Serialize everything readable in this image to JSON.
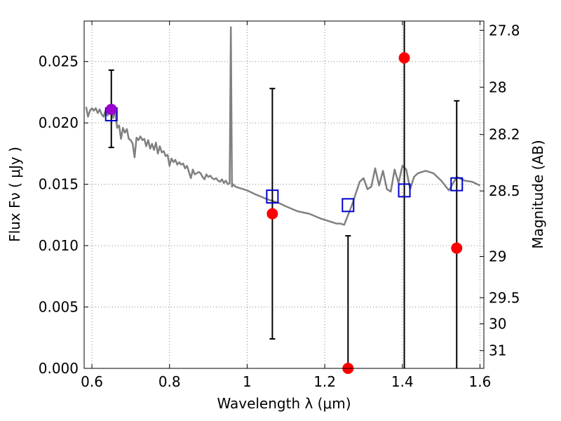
{
  "chart_data": {
    "type": "scatter",
    "xlabel": "Wavelength  λ (μm)",
    "ylabel": "Flux  Fν  ( μJy )",
    "ylabel_right": "Magnitude (AB)",
    "xlim": [
      0.58,
      1.61
    ],
    "ylim": [
      0.0,
      0.0283
    ],
    "grid": true,
    "x_ticks": [
      0.6,
      0.8,
      1.0,
      1.2,
      1.4,
      1.6
    ],
    "x_tick_labels": [
      "0.6",
      "0.8",
      "1",
      "1.2",
      "1.4",
      "1.6"
    ],
    "y_ticks": [
      0.0,
      0.005,
      0.01,
      0.015,
      0.02,
      0.025
    ],
    "y_tick_labels": [
      "0.000",
      "0.005",
      "0.010",
      "0.015",
      "0.020",
      "0.025"
    ],
    "right_ticks": [
      {
        "mag": 27.8,
        "label": "27.8"
      },
      {
        "mag": 28.0,
        "label": "28"
      },
      {
        "mag": 28.2,
        "label": "28.2"
      },
      {
        "mag": 28.5,
        "label": "28.5"
      },
      {
        "mag": 29.0,
        "label": "29"
      },
      {
        "mag": 29.5,
        "label": "29.5"
      },
      {
        "mag": 30.0,
        "label": "30"
      },
      {
        "mag": 31.0,
        "label": "31"
      }
    ],
    "colors": {
      "model": "#808080",
      "observed": "#ff0000",
      "model_band": "#0000cc",
      "overlap": "#9900cc",
      "errorbar": "#000000",
      "grid": "#888888"
    },
    "series": [
      {
        "kind": "line",
        "x": [
          0.585,
          0.59,
          0.595,
          0.6,
          0.605,
          0.61,
          0.615,
          0.62,
          0.625,
          0.63,
          0.635,
          0.64,
          0.645,
          0.65,
          0.655,
          0.66,
          0.665,
          0.67,
          0.675,
          0.68,
          0.685,
          0.69,
          0.695,
          0.7,
          0.705,
          0.71,
          0.715,
          0.72,
          0.725,
          0.73,
          0.735,
          0.74,
          0.745,
          0.75,
          0.755,
          0.76,
          0.765,
          0.77,
          0.775,
          0.78,
          0.785,
          0.79,
          0.795,
          0.8,
          0.805,
          0.81,
          0.815,
          0.82,
          0.825,
          0.83,
          0.835,
          0.84,
          0.845,
          0.85,
          0.855,
          0.86,
          0.865,
          0.87,
          0.875,
          0.88,
          0.885,
          0.89,
          0.895,
          0.9,
          0.905,
          0.91,
          0.915,
          0.92,
          0.925,
          0.93,
          0.935,
          0.94,
          0.945,
          0.95,
          0.955,
          0.958,
          0.961,
          0.964,
          0.97,
          0.98,
          0.99,
          1.0,
          1.02,
          1.05,
          1.08,
          1.1,
          1.13,
          1.16,
          1.19,
          1.21,
          1.23,
          1.24,
          1.25,
          1.27,
          1.29,
          1.3,
          1.31,
          1.32,
          1.33,
          1.34,
          1.35,
          1.36,
          1.37,
          1.38,
          1.39,
          1.4,
          1.41,
          1.42,
          1.43,
          1.44,
          1.46,
          1.48,
          1.5,
          1.52,
          1.54,
          1.56,
          1.58,
          1.6
        ],
        "y": [
          0.0213,
          0.0205,
          0.021,
          0.0212,
          0.021,
          0.0212,
          0.0208,
          0.0211,
          0.0207,
          0.0205,
          0.021,
          0.0206,
          0.0209,
          0.0211,
          0.0204,
          0.021,
          0.0196,
          0.0198,
          0.0187,
          0.0196,
          0.0192,
          0.0195,
          0.0187,
          0.0186,
          0.0183,
          0.0172,
          0.0188,
          0.0186,
          0.0189,
          0.0186,
          0.0187,
          0.0181,
          0.0186,
          0.0179,
          0.0183,
          0.0178,
          0.0184,
          0.0175,
          0.0181,
          0.0176,
          0.0177,
          0.0173,
          0.0174,
          0.0165,
          0.0171,
          0.0168,
          0.017,
          0.0166,
          0.0168,
          0.0166,
          0.0167,
          0.0163,
          0.0165,
          0.016,
          0.0155,
          0.0162,
          0.0158,
          0.0159,
          0.016,
          0.0159,
          0.0156,
          0.0154,
          0.0158,
          0.0156,
          0.0157,
          0.0155,
          0.0154,
          0.0155,
          0.0153,
          0.0152,
          0.0154,
          0.0151,
          0.0153,
          0.015,
          0.0151,
          0.0278,
          0.0148,
          0.015,
          0.0148,
          0.0147,
          0.0146,
          0.0145,
          0.0142,
          0.0138,
          0.0135,
          0.0132,
          0.0128,
          0.0126,
          0.0122,
          0.012,
          0.0118,
          0.0118,
          0.0117,
          0.0133,
          0.0152,
          0.0155,
          0.0146,
          0.0148,
          0.0163,
          0.0149,
          0.0161,
          0.0146,
          0.0144,
          0.0162,
          0.0151,
          0.0165,
          0.0162,
          0.0146,
          0.0156,
          0.0159,
          0.0161,
          0.0159,
          0.0153,
          0.0145,
          0.0156,
          0.0153,
          0.0152,
          0.0149
        ]
      },
      {
        "kind": "model-bands",
        "x": [
          0.65,
          1.065,
          1.26,
          1.405,
          1.54
        ],
        "y": [
          0.0207,
          0.014,
          0.0133,
          0.0145,
          0.015
        ]
      },
      {
        "kind": "observed",
        "x": [
          0.65,
          1.065,
          1.26,
          1.405,
          1.54
        ],
        "y": [
          0.0211,
          0.0126,
          0.0,
          0.0253,
          0.0098
        ],
        "err_low": [
          0.018,
          0.0024,
          0.0,
          0.0,
          0.0
        ],
        "err_high": [
          0.0243,
          0.0228,
          0.0108,
          0.0283,
          0.0218
        ]
      }
    ]
  }
}
